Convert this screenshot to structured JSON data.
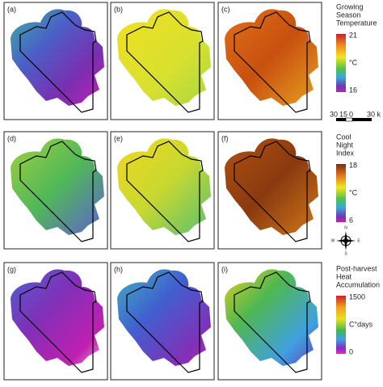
{
  "panels": [
    {
      "label": "(a)"
    },
    {
      "label": "(b)"
    },
    {
      "label": "(c)"
    },
    {
      "label": "(d)"
    },
    {
      "label": "(e)"
    },
    {
      "label": "(f)"
    },
    {
      "label": "(g)"
    },
    {
      "label": "(h)"
    },
    {
      "label": "(i)"
    }
  ],
  "legends": [
    {
      "title": [
        "Growing",
        "Season",
        "Temperature"
      ],
      "max": "21",
      "unit": "°C",
      "min": "16"
    },
    {
      "title": [
        "Cool",
        "Night",
        "Index"
      ],
      "max": "18",
      "unit": "°C",
      "min": "6"
    },
    {
      "title": [
        "Post-harvest",
        "Heat",
        "Accumulation"
      ],
      "max": "1500",
      "unit": "C°days",
      "min": "0"
    }
  ],
  "scale_bar": {
    "labels": [
      "30",
      "15",
      "0",
      "30 k"
    ]
  },
  "compass": {
    "n": "N",
    "e": "E",
    "s": "S",
    "w": "W"
  }
}
